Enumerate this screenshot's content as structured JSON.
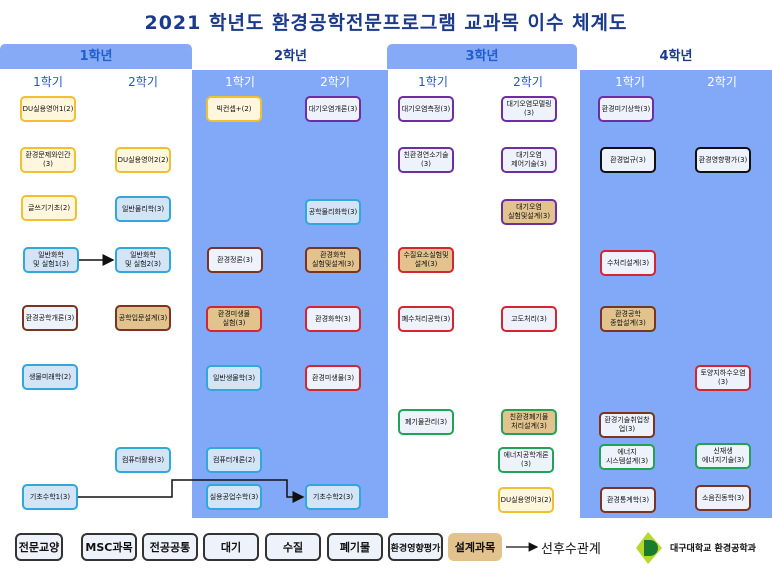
{
  "title": "2021 학년도 환경공학전문프로그램 교과목 이수 체계도",
  "semester_labels": [
    "1학기",
    "2학기"
  ],
  "colors": {
    "liberal": "#f0c030",
    "msc": "#2fa8dc",
    "common": "#7b3322",
    "air": "#6b2fa3",
    "water": "#d42533",
    "waste": "#22a257",
    "eia": "#111111",
    "design_fill": "#e2c38d",
    "panel_blue": "#82a8f8",
    "title": "#1c3a8c"
  },
  "years": [
    {
      "label": "1학년",
      "semesters": [
        {
          "courses": [
            {
              "name": "DU실용영어1(2)",
              "type": "liberal"
            },
            {
              "name": "환경문제와인간\n(3)",
              "type": "liberal"
            },
            {
              "name": "글쓰기기초(2)",
              "type": "liberal"
            },
            {
              "name": "일반화학\n및 실험1(3)",
              "type": "msc"
            },
            {
              "name": "환경공학개론(3)",
              "type": "common"
            },
            {
              "name": "생물미래학(2)",
              "type": "msc"
            },
            {
              "name": "기초수학1(3)",
              "type": "msc"
            }
          ]
        },
        {
          "courses": [
            {
              "name": "DU실용영어2(2)",
              "type": "liberal"
            },
            {
              "name": "일반물리학(3)",
              "type": "msc"
            },
            {
              "name": "일반화학\n및 실험2(3)",
              "type": "msc"
            },
            {
              "name": "공학입문설계(3)",
              "type": "common",
              "design": true
            },
            {
              "name": "컴퓨터활용(3)",
              "type": "msc"
            }
          ]
        }
      ]
    },
    {
      "label": "2학년",
      "semesters": [
        {
          "courses": [
            {
              "name": "빅컨셉+(2)",
              "type": "liberal"
            },
            {
              "name": "환경정론(3)",
              "type": "common"
            },
            {
              "name": "환경미생물\n실험(3)",
              "type": "water",
              "design": true
            },
            {
              "name": "일반생물학(3)",
              "type": "msc"
            },
            {
              "name": "컴퓨터개론(2)",
              "type": "msc"
            },
            {
              "name": "실용공업수학(3)",
              "type": "msc"
            }
          ]
        },
        {
          "courses": [
            {
              "name": "대기오염개론(3)",
              "type": "air"
            },
            {
              "name": "공학물리화학(3)",
              "type": "msc"
            },
            {
              "name": "환경화학\n실험및설계(3)",
              "type": "common",
              "design": true
            },
            {
              "name": "환경화학(3)",
              "type": "water"
            },
            {
              "name": "환경미생물(3)",
              "type": "water"
            },
            {
              "name": "기초수학2(3)",
              "type": "msc"
            }
          ]
        }
      ]
    },
    {
      "label": "3학년",
      "semesters": [
        {
          "courses": [
            {
              "name": "대기오염측정(3)",
              "type": "air"
            },
            {
              "name": "친환경연소기술\n(3)",
              "type": "air"
            },
            {
              "name": "수질요소실험및\n설계(3)",
              "type": "water",
              "design": true
            },
            {
              "name": "폐수처리공학(3)",
              "type": "water"
            },
            {
              "name": "폐기물관리(3)",
              "type": "waste"
            }
          ]
        },
        {
          "courses": [
            {
              "name": "대기오염모델링\n(3)",
              "type": "air"
            },
            {
              "name": "대기오염\n제어기술(3)",
              "type": "air"
            },
            {
              "name": "대기오염\n실험및설계(3)",
              "type": "air",
              "design": true
            },
            {
              "name": "고도처리(3)",
              "type": "water"
            },
            {
              "name": "친환경폐기물\n처리설계(3)",
              "type": "waste",
              "design": true
            },
            {
              "name": "에너지공학개론\n(3)",
              "type": "waste"
            },
            {
              "name": "DU실용영어3(2)",
              "type": "liberal"
            }
          ]
        }
      ]
    },
    {
      "label": "4학년",
      "semesters": [
        {
          "courses": [
            {
              "name": "환경미기상학(3)",
              "type": "air"
            },
            {
              "name": "환경법규(3)",
              "type": "eia"
            },
            {
              "name": "수처리설계(3)",
              "type": "water"
            },
            {
              "name": "환경공학\n종합설계(3)",
              "type": "common",
              "design": true
            },
            {
              "name": "환경기술취업창\n업(3)",
              "type": "common"
            },
            {
              "name": "에너지\n시스템설계(3)",
              "type": "waste"
            },
            {
              "name": "환경통계학(3)",
              "type": "common"
            }
          ]
        },
        {
          "courses": [
            {
              "name": "환경영향평가(3)",
              "type": "eia"
            },
            {
              "name": "토양지하수오염\n(3)",
              "type": "water"
            },
            {
              "name": "신재생\n에너지기술(3)",
              "type": "waste"
            },
            {
              "name": "소음진동학(3)",
              "type": "common"
            }
          ]
        }
      ]
    }
  ],
  "legend": {
    "items": [
      {
        "label": "전문교양",
        "type": "liberal"
      },
      {
        "label": "MSC과목",
        "type": "msc"
      },
      {
        "label": "전공공통",
        "type": "common"
      },
      {
        "label": "대기",
        "type": "air"
      },
      {
        "label": "수질",
        "type": "water"
      },
      {
        "label": "폐기물",
        "type": "waste"
      },
      {
        "label": "환경영향평가",
        "type": "eia"
      },
      {
        "label": "설계과목",
        "type": "design"
      }
    ],
    "arrow_label": "선후수관계"
  },
  "logo": {
    "text": "대구대학교 환경공학과"
  }
}
